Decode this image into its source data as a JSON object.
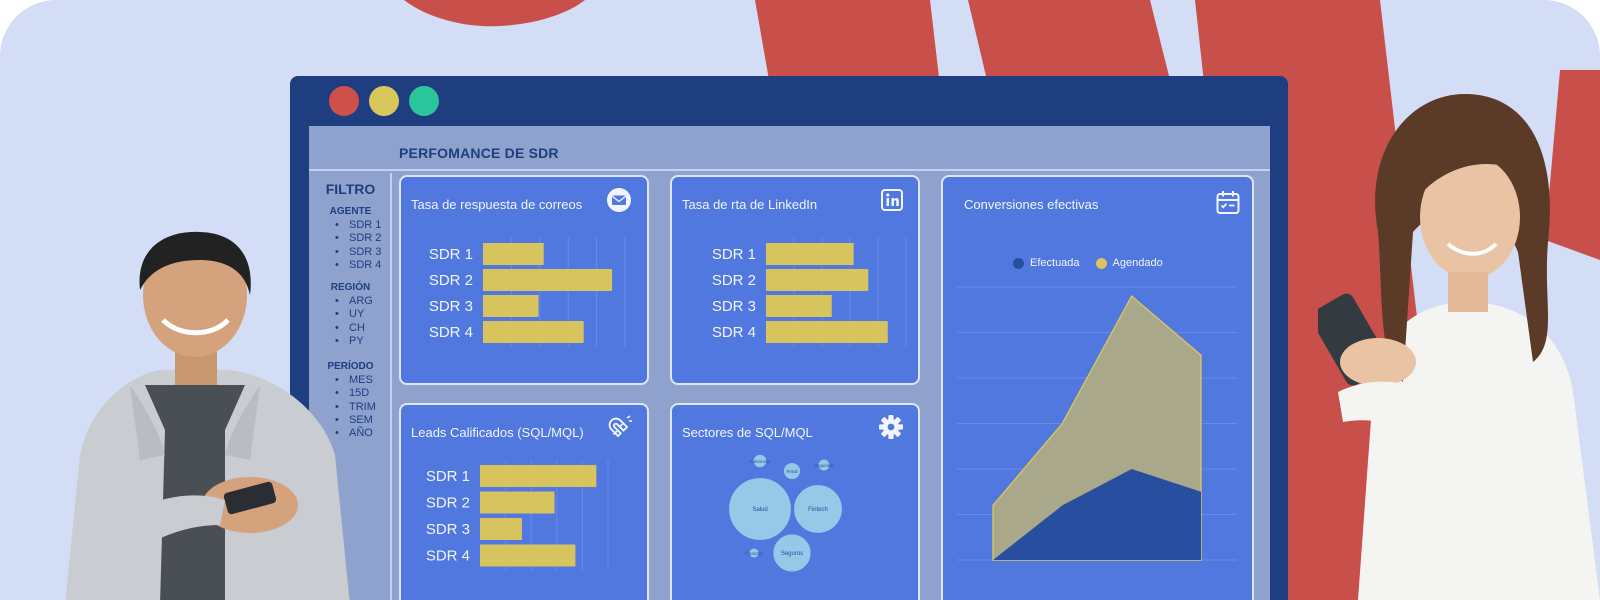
{
  "header": {
    "title": "PERFOMANCE DE SDR"
  },
  "window_controls": [
    "close",
    "minimize",
    "maximize"
  ],
  "sidebar": {
    "title": "FILTRO",
    "groups": [
      {
        "label": "AGENTE",
        "items": [
          "SDR 1",
          "SDR 2",
          "SDR 3",
          "SDR 4"
        ]
      },
      {
        "label": "REGIÓN",
        "items": [
          "ARG",
          "UY",
          "CH",
          "PY"
        ]
      },
      {
        "label": "PERÍODO",
        "items": [
          "MES",
          "15D",
          "TRIM",
          "SEM",
          "AÑO"
        ]
      }
    ]
  },
  "colors": {
    "background": "#d4ddf6",
    "decor": "#c9504a",
    "window": "#1e3e80",
    "panel": "#8ea2cd",
    "card": "#5078df",
    "bar": "#d7c45f",
    "efectuada": "#284ea0",
    "agendado": "#a9a88b"
  },
  "cards": {
    "correos": {
      "title": "Tasa de respuesta de correos",
      "icon": "email-icon"
    },
    "linkedin": {
      "title": "Tasa de rta de LinkedIn",
      "icon": "linkedin-icon"
    },
    "conversiones": {
      "title": "Conversiones efectivas",
      "icon": "calendar-check-icon"
    },
    "leads": {
      "title": "Leads Calificados (SQL/MQL)",
      "icon": "magnet-icon"
    },
    "sectores": {
      "title": "Sectores de SQL/MQL",
      "icon": "gear-icon"
    }
  },
  "chart_data": [
    {
      "type": "bar",
      "orientation": "horizontal",
      "title": "Tasa de respuesta de correos",
      "categories": [
        "SDR 1",
        "SDR 2",
        "SDR 3",
        "SDR 4"
      ],
      "values": [
        47,
        100,
        43,
        78
      ],
      "xlim": [
        0,
        110
      ]
    },
    {
      "type": "bar",
      "orientation": "horizontal",
      "title": "Tasa de rta de LinkedIn",
      "categories": [
        "SDR 1",
        "SDR 2",
        "SDR 3",
        "SDR 4"
      ],
      "values": [
        72,
        84,
        54,
        100
      ],
      "xlim": [
        0,
        115
      ]
    },
    {
      "type": "bar",
      "orientation": "horizontal",
      "title": "Leads Calificados (SQL/MQL)",
      "categories": [
        "SDR 1",
        "SDR 2",
        "SDR 3",
        "SDR 4"
      ],
      "values": [
        100,
        64,
        36,
        82
      ],
      "xlim": [
        0,
        110
      ]
    },
    {
      "type": "bubble",
      "title": "Sectores de SQL/MQL",
      "bubbles": [
        {
          "label": "Automotriz",
          "size": 8
        },
        {
          "label": "Retail",
          "size": 10
        },
        {
          "label": "Seguridad",
          "size": 7
        },
        {
          "label": "Salud",
          "size": 36
        },
        {
          "label": "Fintech",
          "size": 28
        },
        {
          "label": "Finanzas",
          "size": 6
        },
        {
          "label": "Seguros",
          "size": 22
        }
      ]
    },
    {
      "type": "area",
      "title": "Conversiones efectivas",
      "x": [
        1,
        2,
        3,
        4
      ],
      "series": [
        {
          "name": "Efectuada",
          "values": [
            0,
            12,
            20,
            15
          ]
        },
        {
          "name": "Agendado",
          "values": [
            12,
            30,
            58,
            45
          ]
        }
      ],
      "ylim": [
        0,
        60
      ],
      "grid": true,
      "legend": "top-center"
    }
  ]
}
